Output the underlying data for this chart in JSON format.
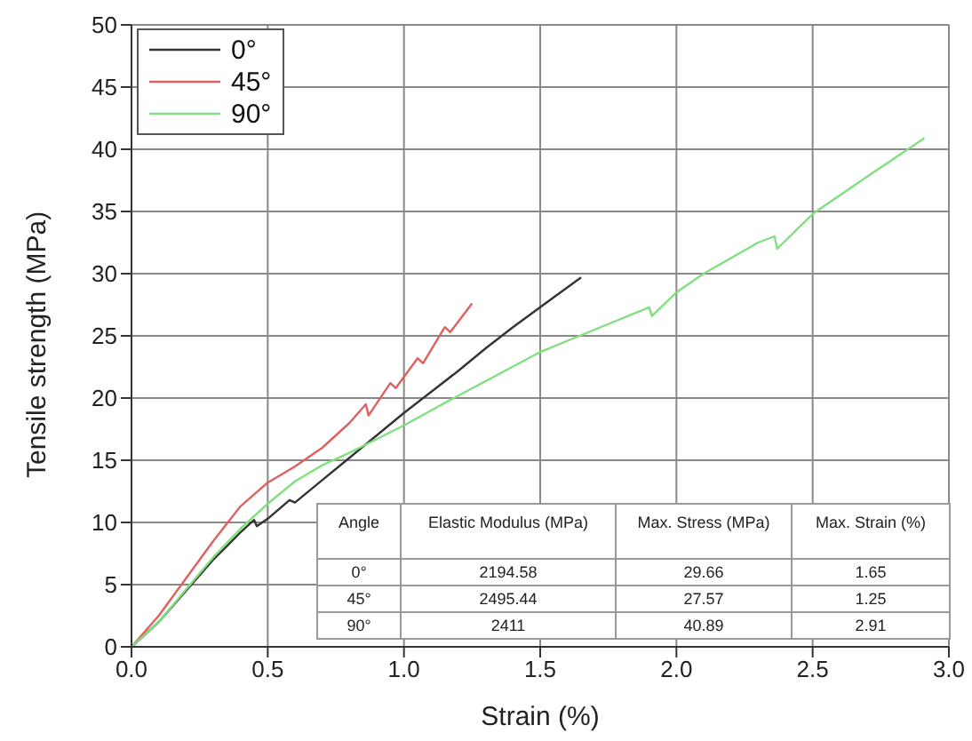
{
  "chart_data": {
    "type": "line",
    "xlabel": "Strain (%)",
    "ylabel": "Tensile strength (MPa)",
    "xlim": [
      0,
      3
    ],
    "xticks": [
      {
        "value": 0,
        "label": "0.0"
      },
      {
        "value": 0.5,
        "label": "0.5"
      },
      {
        "value": 1,
        "label": "1.0"
      },
      {
        "value": 1.5,
        "label": "1.5"
      },
      {
        "value": 2,
        "label": "2.0"
      },
      {
        "value": 2.5,
        "label": "2.5"
      },
      {
        "value": 3,
        "label": "3.0"
      }
    ],
    "ylim": [
      0,
      50
    ],
    "yticks": [
      0,
      5,
      10,
      15,
      20,
      25,
      30,
      35,
      40,
      45,
      50
    ],
    "grid": true,
    "legend": "top left",
    "marker": "none",
    "series": [
      {
        "name": "0°",
        "color": "#333333",
        "x": [
          0,
          0.1,
          0.2,
          0.3,
          0.4,
          0.45,
          0.46,
          0.5,
          0.58,
          0.6,
          0.7,
          0.8,
          0.9,
          1.0,
          1.1,
          1.2,
          1.3,
          1.4,
          1.5,
          1.65
        ],
        "values": [
          0,
          2,
          4.5,
          7,
          9.2,
          10.2,
          9.7,
          10.3,
          11.8,
          11.6,
          13.4,
          15.2,
          17,
          18.8,
          20.5,
          22.2,
          24,
          25.7,
          27.3,
          29.7
        ]
      },
      {
        "name": "45°",
        "color": "#e06060",
        "x": [
          0,
          0.1,
          0.2,
          0.3,
          0.4,
          0.5,
          0.6,
          0.7,
          0.8,
          0.86,
          0.87,
          0.95,
          0.97,
          1.05,
          1.07,
          1.15,
          1.17,
          1.25
        ],
        "values": [
          0,
          2.5,
          5.5,
          8.5,
          11.3,
          13.2,
          14.5,
          16,
          18,
          19.5,
          18.6,
          21.2,
          20.8,
          23.2,
          22.8,
          25.7,
          25.3,
          27.6
        ]
      },
      {
        "name": "90°",
        "color": "#80e080",
        "x": [
          0,
          0.1,
          0.2,
          0.3,
          0.4,
          0.5,
          0.6,
          0.7,
          0.8,
          0.9,
          1.0,
          1.2,
          1.5,
          1.7,
          1.9,
          1.91,
          2.0,
          2.1,
          2.3,
          2.36,
          2.37,
          2.5,
          2.7,
          2.91
        ],
        "values": [
          0,
          2,
          4.6,
          7.2,
          9.5,
          11.5,
          13.3,
          14.6,
          15.6,
          16.7,
          17.8,
          20.2,
          23.7,
          25.5,
          27.3,
          26.6,
          28.5,
          30,
          32.5,
          33,
          32,
          34.8,
          37.8,
          40.9
        ]
      }
    ],
    "annotations": [
      "Angle",
      "Elastic Modulus (MPa)",
      "Max. Stress (MPa)",
      "Max. Strain (%)",
      "0°",
      "2194.58",
      "29.66",
      "1.65",
      "45°",
      "2495.44",
      "27.57",
      "1.25",
      "90°",
      "2411",
      "40.89",
      "2.91"
    ]
  }
}
